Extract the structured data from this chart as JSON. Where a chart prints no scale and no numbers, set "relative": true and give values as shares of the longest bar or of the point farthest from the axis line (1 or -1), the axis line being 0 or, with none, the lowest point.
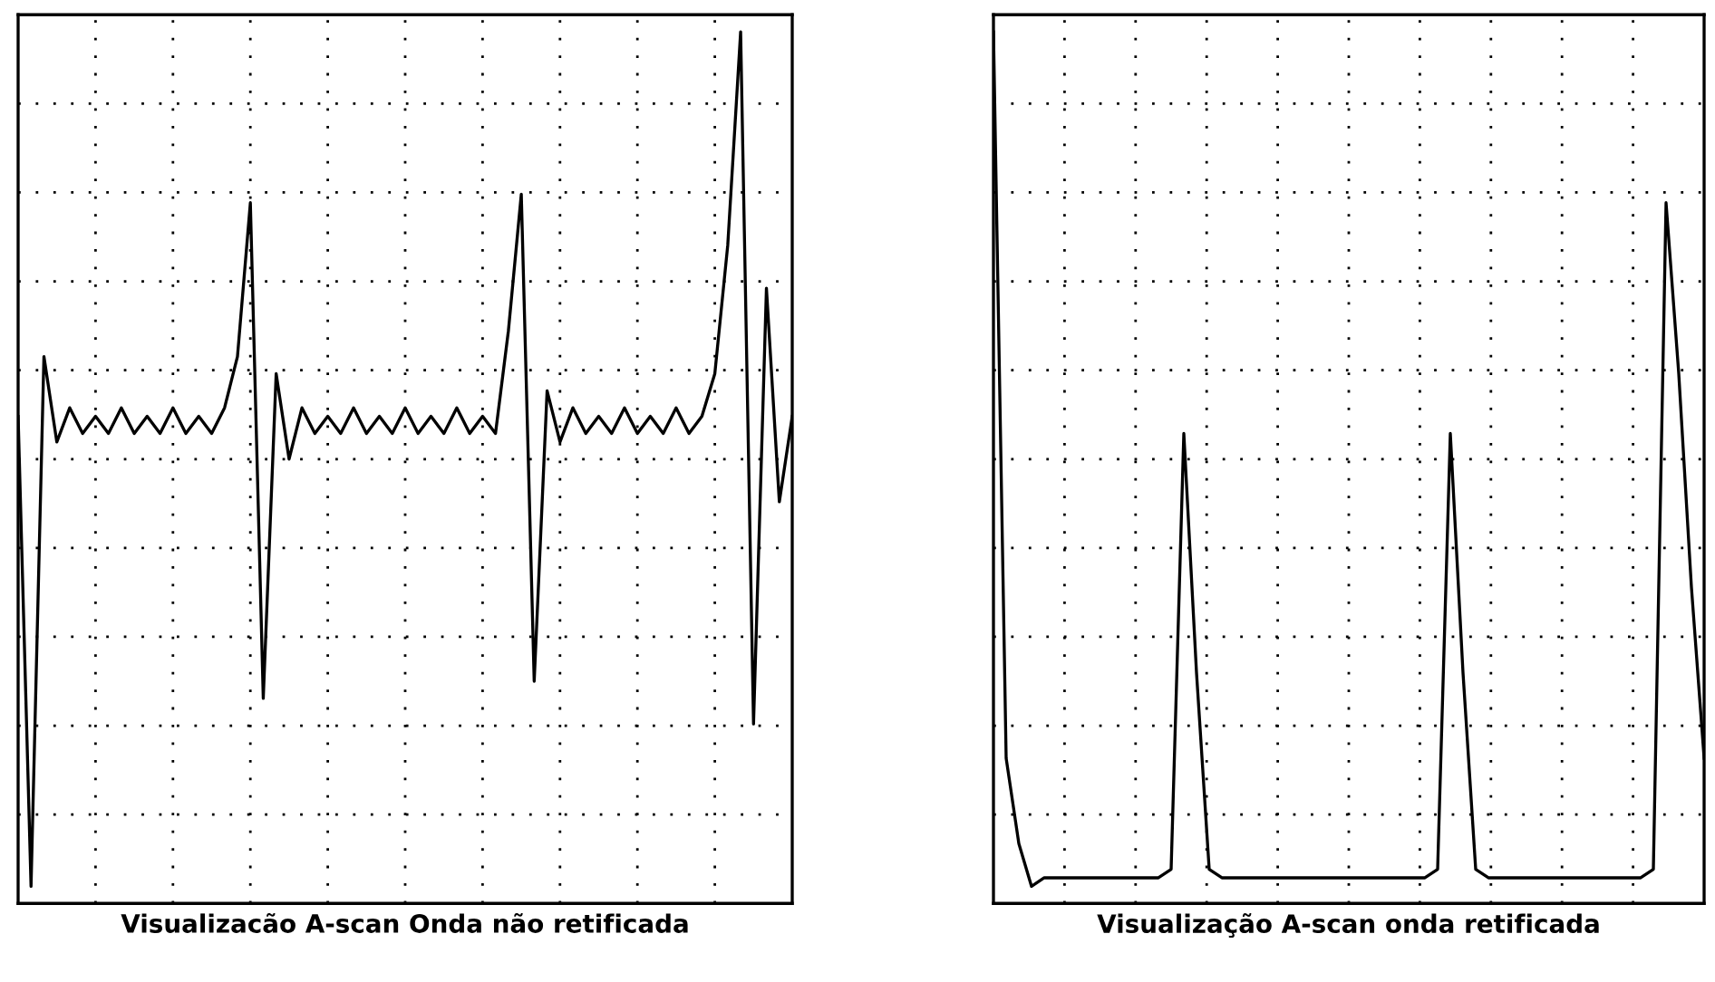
{
  "chart_data": [
    {
      "type": "line",
      "relative": true,
      "xlabel": "Visualizacão A-scan Onda não retificada",
      "grid": true,
      "tick_labels": false,
      "categories": [
        null,
        null,
        null,
        null,
        null,
        null,
        null,
        null,
        null,
        null,
        null,
        null,
        null,
        null,
        null,
        null,
        null,
        null,
        null,
        null,
        null,
        null,
        null,
        null,
        null,
        null,
        null,
        null,
        null,
        null,
        null,
        null,
        null,
        null,
        null,
        null,
        null,
        null,
        null,
        null,
        null,
        null,
        null,
        null,
        null,
        null,
        null,
        null,
        null,
        null,
        null,
        null,
        null,
        null,
        null,
        null,
        null,
        null,
        null,
        null,
        null
      ],
      "series": [
        {
          "color": "#000000",
          "values": [
            0.55,
            0.0,
            0.62,
            0.52,
            0.56,
            0.53,
            0.55,
            0.53,
            0.56,
            0.53,
            0.55,
            0.53,
            0.56,
            0.53,
            0.55,
            0.53,
            0.56,
            0.62,
            0.8,
            0.22,
            0.6,
            0.5,
            0.56,
            0.53,
            0.55,
            0.53,
            0.56,
            0.53,
            0.55,
            0.53,
            0.56,
            0.53,
            0.55,
            0.53,
            0.56,
            0.53,
            0.55,
            0.53,
            0.65,
            0.81,
            0.24,
            0.58,
            0.52,
            0.56,
            0.53,
            0.55,
            0.53,
            0.56,
            0.53,
            0.55,
            0.53,
            0.56,
            0.53,
            0.55,
            0.6,
            0.75,
            1.0,
            0.19,
            0.7,
            0.45,
            0.55
          ]
        }
      ]
    },
    {
      "type": "line",
      "relative": true,
      "xlabel": "Visualização A-scan onda retificada",
      "grid": true,
      "tick_labels": false,
      "categories": [
        null,
        null,
        null,
        null,
        null,
        null,
        null,
        null,
        null,
        null,
        null,
        null,
        null,
        null,
        null,
        null,
        null,
        null,
        null,
        null,
        null,
        null,
        null,
        null,
        null,
        null,
        null,
        null,
        null,
        null,
        null,
        null,
        null,
        null,
        null,
        null,
        null,
        null,
        null,
        null,
        null,
        null,
        null,
        null,
        null,
        null,
        null,
        null,
        null,
        null,
        null,
        null,
        null,
        null,
        null,
        null,
        null
      ],
      "series": [
        {
          "color": "#000000",
          "values": [
            1.0,
            0.15,
            0.05,
            0.0,
            0.01,
            0.01,
            0.01,
            0.01,
            0.01,
            0.01,
            0.01,
            0.01,
            0.01,
            0.01,
            0.02,
            0.53,
            0.25,
            0.02,
            0.01,
            0.01,
            0.01,
            0.01,
            0.01,
            0.01,
            0.01,
            0.01,
            0.01,
            0.01,
            0.01,
            0.01,
            0.01,
            0.01,
            0.01,
            0.01,
            0.01,
            0.02,
            0.53,
            0.25,
            0.02,
            0.01,
            0.01,
            0.01,
            0.01,
            0.01,
            0.01,
            0.01,
            0.01,
            0.01,
            0.01,
            0.01,
            0.01,
            0.01,
            0.02,
            0.8,
            0.6,
            0.35,
            0.15
          ]
        }
      ]
    }
  ]
}
